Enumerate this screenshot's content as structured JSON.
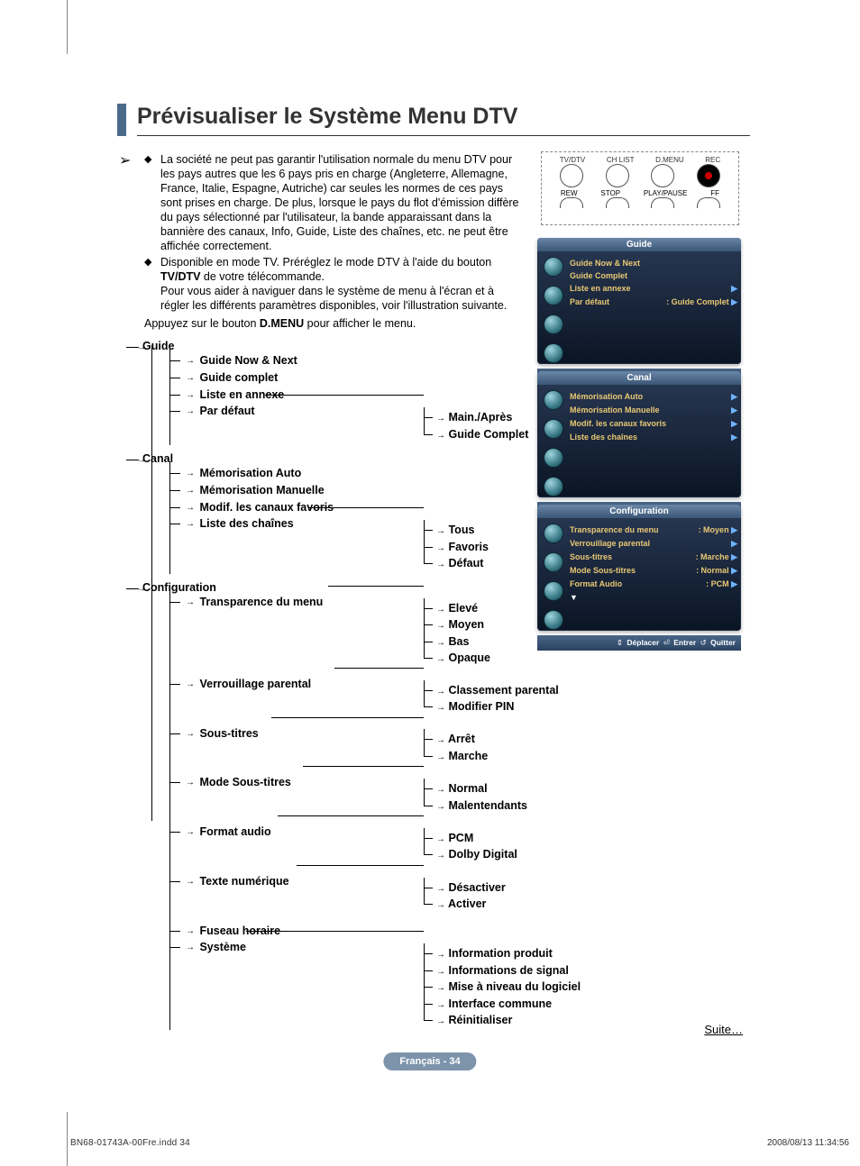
{
  "page": {
    "title": "Prévisualiser le Système Menu DTV",
    "suite": "Suite…",
    "badge": "Français - 34",
    "footer_file": "BN68-01743A-00Fre.indd   34",
    "footer_date": "2008/08/13   11:34:56"
  },
  "intro": {
    "bullets": [
      "La société ne peut pas garantir l'utilisation normale du menu DTV pour les pays autres que les 6 pays pris en charge (Angleterre, Allemagne, France, Italie, Espagne, Autriche) car seules les normes de ces pays sont prises en charge. De plus, lorsque le pays du flot d'émission diffère du pays sélectionné par l'utilisateur, la bande apparaissant dans la bannière des canaux, Info, Guide, Liste des chaînes, etc. ne peut être affichée correctement.",
      "Disponible en mode TV. Préréglez le mode DTV à l'aide du bouton TV/DTV de votre télécommande.\nPour vous aider à naviguer dans le système de menu à l'écran et à régler les différents paramètres disponibles, voir l'illustration suivante."
    ],
    "post": "Appuyez sur le bouton D.MENU pour afficher le menu."
  },
  "tree": {
    "sections": [
      {
        "label": "Guide",
        "items": [
          {
            "label": "Guide Now & Next"
          },
          {
            "label": "Guide complet"
          },
          {
            "label": "Liste en annexe"
          },
          {
            "label": "Par défaut",
            "sub": [
              "Main./Après",
              "Guide Complet"
            ]
          }
        ]
      },
      {
        "label": "Canal",
        "items": [
          {
            "label": "Mémorisation Auto"
          },
          {
            "label": "Mémorisation Manuelle"
          },
          {
            "label": "Modif. les canaux favoris"
          },
          {
            "label": "Liste des chaînes",
            "sub": [
              "Tous",
              "Favoris",
              "Défaut"
            ]
          }
        ]
      },
      {
        "label": "Configuration",
        "items": [
          {
            "label": "Transparence du menu",
            "sub": [
              "Elevé",
              "Moyen",
              "Bas",
              "Opaque"
            ]
          },
          {
            "label": "Verrouillage parental",
            "sub": [
              "Classement parental",
              "Modifier PIN"
            ]
          },
          {
            "label": "Sous-titres",
            "sub": [
              "Arrêt",
              "Marche"
            ]
          },
          {
            "label": "Mode Sous-titres",
            "sub": [
              "Normal",
              "Malentendants"
            ]
          },
          {
            "label": "Format audio",
            "sub": [
              "PCM",
              "Dolby Digital"
            ]
          },
          {
            "label": "Texte numérique",
            "sub": [
              "Désactiver",
              "Activer"
            ]
          },
          {
            "label": "Fuseau horaire"
          },
          {
            "label": "Système",
            "sub": [
              "Information produit",
              "Informations de signal",
              "Mise à niveau du logiciel",
              "Interface commune",
              "Réinitialiser"
            ]
          }
        ]
      }
    ]
  },
  "remote": {
    "row1": [
      "TV/DTV",
      "CH LIST",
      "D.MENU",
      "REC"
    ],
    "row2": [
      "REW",
      "STOP",
      "PLAY/PAUSE",
      "FF"
    ]
  },
  "osd_foot": {
    "move": "Déplacer",
    "enter": "Entrer",
    "quit": "Quitter"
  },
  "osd": [
    {
      "title": "Guide",
      "lines": [
        {
          "l": "Guide Now & Next",
          "r": ""
        },
        {
          "l": "Guide Complet",
          "r": ""
        },
        {
          "l": "Liste en annexe",
          "r": "",
          "tri": true
        },
        {
          "l": "Par défaut",
          "r": ": Guide Complet",
          "tri": true
        }
      ]
    },
    {
      "title": "Canal",
      "lines": [
        {
          "l": "Mémorisation Auto",
          "r": "",
          "tri": true
        },
        {
          "l": "Mémorisation Manuelle",
          "r": "",
          "tri": true
        },
        {
          "l": "Modif. les canaux favoris",
          "r": "",
          "tri": true
        },
        {
          "l": "Liste des chaînes",
          "r": "",
          "tri": true
        }
      ]
    },
    {
      "title": "Configuration",
      "lines": [
        {
          "l": "Transparence du menu",
          "r": ": Moyen",
          "tri": true
        },
        {
          "l": "Verrouillage parental",
          "r": "",
          "tri": true
        },
        {
          "l": "Sous-titres",
          "r": ": Marche",
          "tri": true
        },
        {
          "l": "Mode Sous-titres",
          "r": ": Normal",
          "tri": true
        },
        {
          "l": "Format Audio",
          "r": ": PCM",
          "tri": true
        },
        {
          "l": "▼",
          "r": "",
          "white": true
        }
      ]
    }
  ],
  "colors": {
    "title_accent": "#4a6a8a",
    "osd_bg_top": "#2a3a55",
    "osd_bg_bottom": "#0a1424",
    "osd_header_top": "#6a86a8",
    "osd_text_highlight": "#e8c874",
    "badge_bg": "#7d94ab"
  }
}
